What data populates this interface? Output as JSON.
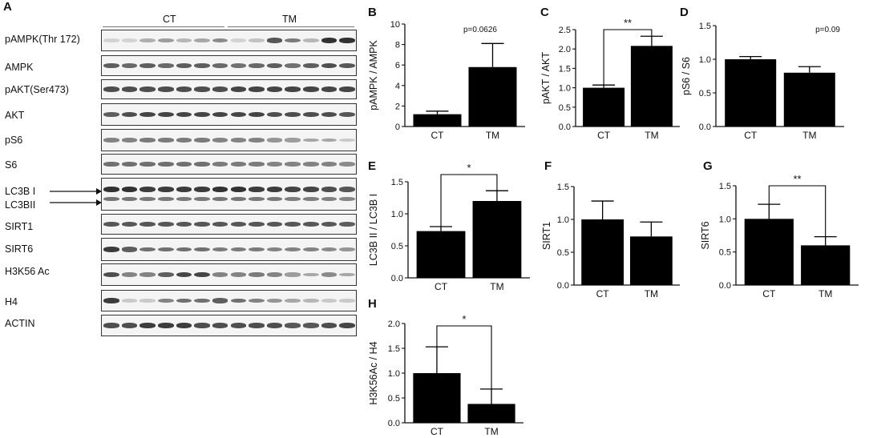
{
  "panel_a": {
    "letter": "A",
    "groups": [
      "CT",
      "TM"
    ],
    "blots": [
      {
        "label": "pAMPK(Thr 172)",
        "intensity": [
          0.05,
          0.05,
          0.25,
          0.35,
          0.2,
          0.3,
          0.45,
          0.05,
          0.15,
          0.75,
          0.55,
          0.2,
          0.95,
          0.95
        ]
      },
      {
        "label": "AMPK",
        "intensity": [
          0.7,
          0.65,
          0.7,
          0.65,
          0.7,
          0.7,
          0.65,
          0.6,
          0.65,
          0.7,
          0.6,
          0.7,
          0.8,
          0.75
        ]
      },
      {
        "label": "pAKT(Ser473)",
        "intensity": [
          0.8,
          0.8,
          0.8,
          0.8,
          0.8,
          0.8,
          0.8,
          0.85,
          0.85,
          0.85,
          0.85,
          0.85,
          0.85,
          0.85
        ]
      },
      {
        "label": "AKT",
        "intensity": [
          0.7,
          0.8,
          0.85,
          0.85,
          0.85,
          0.85,
          0.85,
          0.85,
          0.85,
          0.8,
          0.8,
          0.8,
          0.8,
          0.75
        ]
      },
      {
        "label": "pS6",
        "intensity": [
          0.5,
          0.5,
          0.55,
          0.55,
          0.55,
          0.55,
          0.5,
          0.5,
          0.5,
          0.4,
          0.35,
          0.3,
          0.3,
          0.1
        ]
      },
      {
        "label": "S6",
        "intensity": [
          0.6,
          0.6,
          0.6,
          0.6,
          0.6,
          0.6,
          0.55,
          0.55,
          0.55,
          0.5,
          0.5,
          0.5,
          0.5,
          0.45
        ]
      },
      {
        "label": "LC3B I",
        "intensity": [
          0.95,
          0.95,
          0.9,
          0.9,
          0.9,
          0.9,
          0.95,
          0.95,
          0.9,
          0.9,
          0.85,
          0.85,
          0.8,
          0.75
        ]
      },
      {
        "label": "SIRT1",
        "intensity": [
          0.75,
          0.75,
          0.75,
          0.75,
          0.75,
          0.75,
          0.75,
          0.75,
          0.75,
          0.75,
          0.75,
          0.75,
          0.75,
          0.7
        ]
      },
      {
        "label": "SIRT6",
        "intensity": [
          0.9,
          0.7,
          0.6,
          0.6,
          0.6,
          0.6,
          0.55,
          0.55,
          0.55,
          0.5,
          0.5,
          0.5,
          0.45,
          0.4
        ]
      },
      {
        "label": "H3K56 Ac",
        "intensity": [
          0.8,
          0.5,
          0.5,
          0.7,
          0.85,
          0.85,
          0.5,
          0.5,
          0.55,
          0.5,
          0.35,
          0.3,
          0.45,
          0.3
        ]
      },
      {
        "label": "H4",
        "intensity": [
          0.9,
          0.1,
          0.1,
          0.5,
          0.6,
          0.6,
          0.7,
          0.6,
          0.5,
          0.4,
          0.3,
          0.2,
          0.1,
          0.1
        ]
      },
      {
        "label": "ACTIN",
        "intensity": [
          0.8,
          0.8,
          0.9,
          0.9,
          0.9,
          0.8,
          0.8,
          0.8,
          0.8,
          0.8,
          0.75,
          0.75,
          0.8,
          0.85
        ]
      }
    ],
    "lc3b_ii_label": "LC3BII"
  },
  "chart_data": [
    {
      "letter": "B",
      "type": "bar",
      "categories": [
        "CT",
        "TM"
      ],
      "values": [
        1.2,
        5.8
      ],
      "errors": [
        0.3,
        2.3
      ],
      "ylabel": "pAMPK / AMPK",
      "ylim": [
        0,
        10
      ],
      "yticks": [
        "0",
        "2",
        "4",
        "6",
        "8",
        "10"
      ],
      "annotation": "p=0.0626",
      "significance": ""
    },
    {
      "letter": "C",
      "type": "bar",
      "categories": [
        "CT",
        "TM"
      ],
      "values": [
        1.0,
        2.08
      ],
      "errors": [
        0.07,
        0.25
      ],
      "ylabel": "pAKT / AKT",
      "ylim": [
        0,
        2.5
      ],
      "yticks": [
        "0.0",
        "0.5",
        "1.0",
        "1.5",
        "2.0",
        "2.5"
      ],
      "annotation": "",
      "significance": "**"
    },
    {
      "letter": "D",
      "type": "bar",
      "categories": [
        "CT",
        "TM"
      ],
      "values": [
        1.0,
        0.8
      ],
      "errors": [
        0.04,
        0.09
      ],
      "ylabel": "pS6 / S6",
      "ylim": [
        0,
        1.5
      ],
      "yticks": [
        "0.0",
        "0.5",
        "1.0",
        "1.5"
      ],
      "annotation": "p=0.09",
      "significance": ""
    },
    {
      "letter": "E",
      "type": "bar",
      "categories": [
        "CT",
        "TM"
      ],
      "values": [
        0.73,
        1.2
      ],
      "errors": [
        0.07,
        0.16
      ],
      "ylabel": "LC3B II / LC3B I",
      "ylim": [
        0,
        1.5
      ],
      "yticks": [
        "0.0",
        "0.5",
        "1.0",
        "1.5"
      ],
      "annotation": "",
      "significance": "*"
    },
    {
      "letter": "F",
      "type": "bar",
      "categories": [
        "CT",
        "TM"
      ],
      "values": [
        1.0,
        0.74
      ],
      "errors": [
        0.28,
        0.22
      ],
      "ylabel": "SIRT1",
      "ylim": [
        0,
        1.5
      ],
      "yticks": [
        "0.0",
        "0.5",
        "1.0",
        "1.5"
      ],
      "annotation": "",
      "significance": ""
    },
    {
      "letter": "G",
      "type": "bar",
      "categories": [
        "CT",
        "TM"
      ],
      "values": [
        1.0,
        0.6
      ],
      "errors": [
        0.22,
        0.13
      ],
      "ylabel": "SIRT6",
      "ylim": [
        0,
        1.5
      ],
      "yticks": [
        "0.0",
        "0.5",
        "1.0",
        "1.5"
      ],
      "annotation": "",
      "significance": "**"
    },
    {
      "letter": "H",
      "type": "bar",
      "categories": [
        "CT",
        "TM"
      ],
      "values": [
        1.0,
        0.38
      ],
      "errors": [
        0.53,
        0.3
      ],
      "ylabel": "H3K56Ac / H4",
      "ylim": [
        0,
        2.0
      ],
      "yticks": [
        "0.0",
        "0.5",
        "1.0",
        "1.5",
        "2.0"
      ],
      "annotation": "",
      "significance": "*"
    }
  ]
}
